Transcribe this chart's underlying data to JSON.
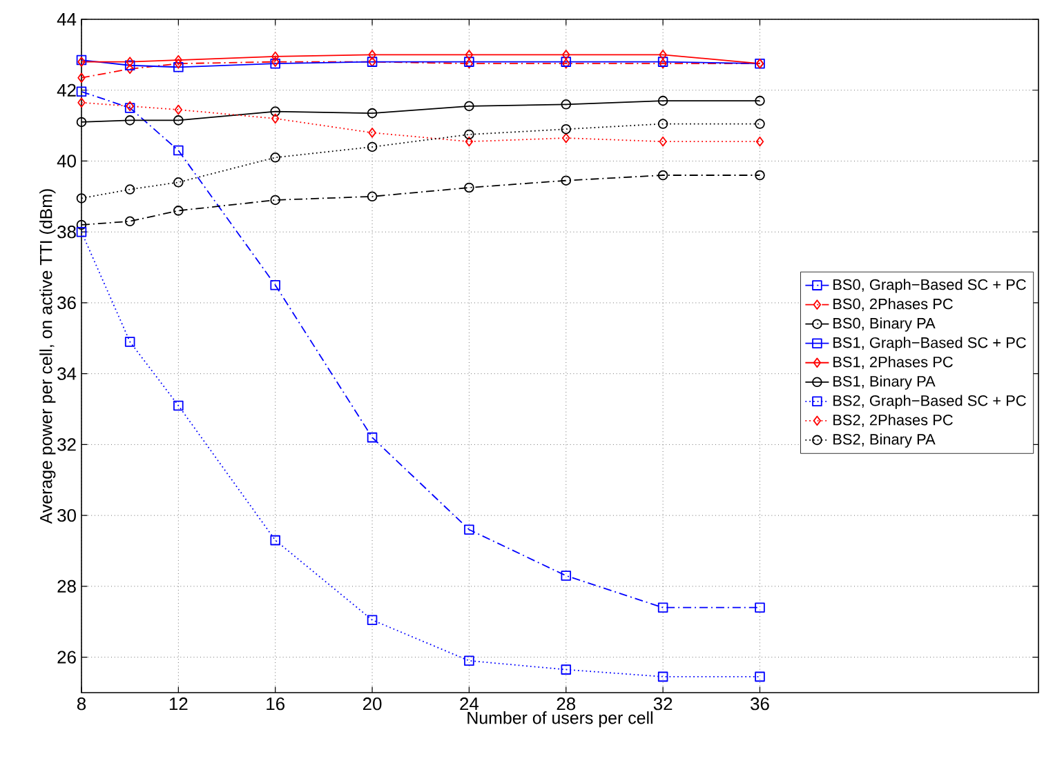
{
  "chart_data": {
    "type": "line",
    "xlabel": "Number of users per cell",
    "ylabel": "Average power per cell, on active TTI (dBm)",
    "x": [
      8,
      10,
      12,
      16,
      20,
      24,
      28,
      32,
      36
    ],
    "xlim": [
      8,
      47.5
    ],
    "xticks": [
      8,
      12,
      16,
      20,
      24,
      28,
      32,
      36
    ],
    "ylim": [
      25,
      44
    ],
    "yticks": [
      26,
      28,
      30,
      32,
      34,
      36,
      38,
      40,
      42,
      44
    ],
    "grid": true,
    "legend": "right",
    "series": [
      {
        "name": "BS0, Graph−Based SC + PC",
        "color": "#0000ff",
        "marker": "square",
        "line_style": "dashdot",
        "values": [
          41.96,
          41.5,
          40.3,
          36.5,
          32.2,
          29.6,
          28.3,
          27.4,
          27.4
        ]
      },
      {
        "name": "BS0, 2Phases PC",
        "color": "#ff0000",
        "marker": "diamond",
        "line_style": "dashdot",
        "values": [
          42.35,
          42.6,
          42.75,
          42.8,
          42.8,
          42.75,
          42.75,
          42.75,
          42.75
        ]
      },
      {
        "name": "BS0, Binary PA",
        "color": "#000000",
        "marker": "circle",
        "line_style": "dashdot",
        "values": [
          38.2,
          38.3,
          38.6,
          38.9,
          39.0,
          39.25,
          39.45,
          39.6,
          39.6
        ]
      },
      {
        "name": "BS1, Graph−Based SC + PC",
        "color": "#0000ff",
        "marker": "square",
        "line_style": "solid",
        "values": [
          42.85,
          42.7,
          42.65,
          42.75,
          42.8,
          42.8,
          42.8,
          42.8,
          42.75
        ]
      },
      {
        "name": "BS1, 2Phases PC",
        "color": "#ff0000",
        "marker": "diamond",
        "line_style": "solid",
        "values": [
          42.8,
          42.8,
          42.85,
          42.95,
          43.0,
          43.0,
          43.0,
          43.0,
          42.75
        ]
      },
      {
        "name": "BS1, Binary PA",
        "color": "#000000",
        "marker": "circle",
        "line_style": "solid",
        "values": [
          41.1,
          41.15,
          41.15,
          41.4,
          41.35,
          41.55,
          41.6,
          41.7,
          41.7
        ]
      },
      {
        "name": "BS2, Graph−Based SC + PC",
        "color": "#0000ff",
        "marker": "square",
        "line_style": "dotted",
        "values": [
          38.0,
          34.9,
          33.1,
          29.3,
          27.05,
          25.9,
          25.65,
          25.45,
          25.45
        ]
      },
      {
        "name": "BS2, 2Phases PC",
        "color": "#ff0000",
        "marker": "diamond",
        "line_style": "dotted",
        "values": [
          41.65,
          41.55,
          41.45,
          41.2,
          40.8,
          40.55,
          40.65,
          40.55,
          40.55
        ]
      },
      {
        "name": "BS2, Binary PA",
        "color": "#000000",
        "marker": "circle",
        "line_style": "dotted",
        "values": [
          38.95,
          39.2,
          39.4,
          40.1,
          40.4,
          40.75,
          40.9,
          41.05,
          41.05
        ]
      }
    ]
  }
}
